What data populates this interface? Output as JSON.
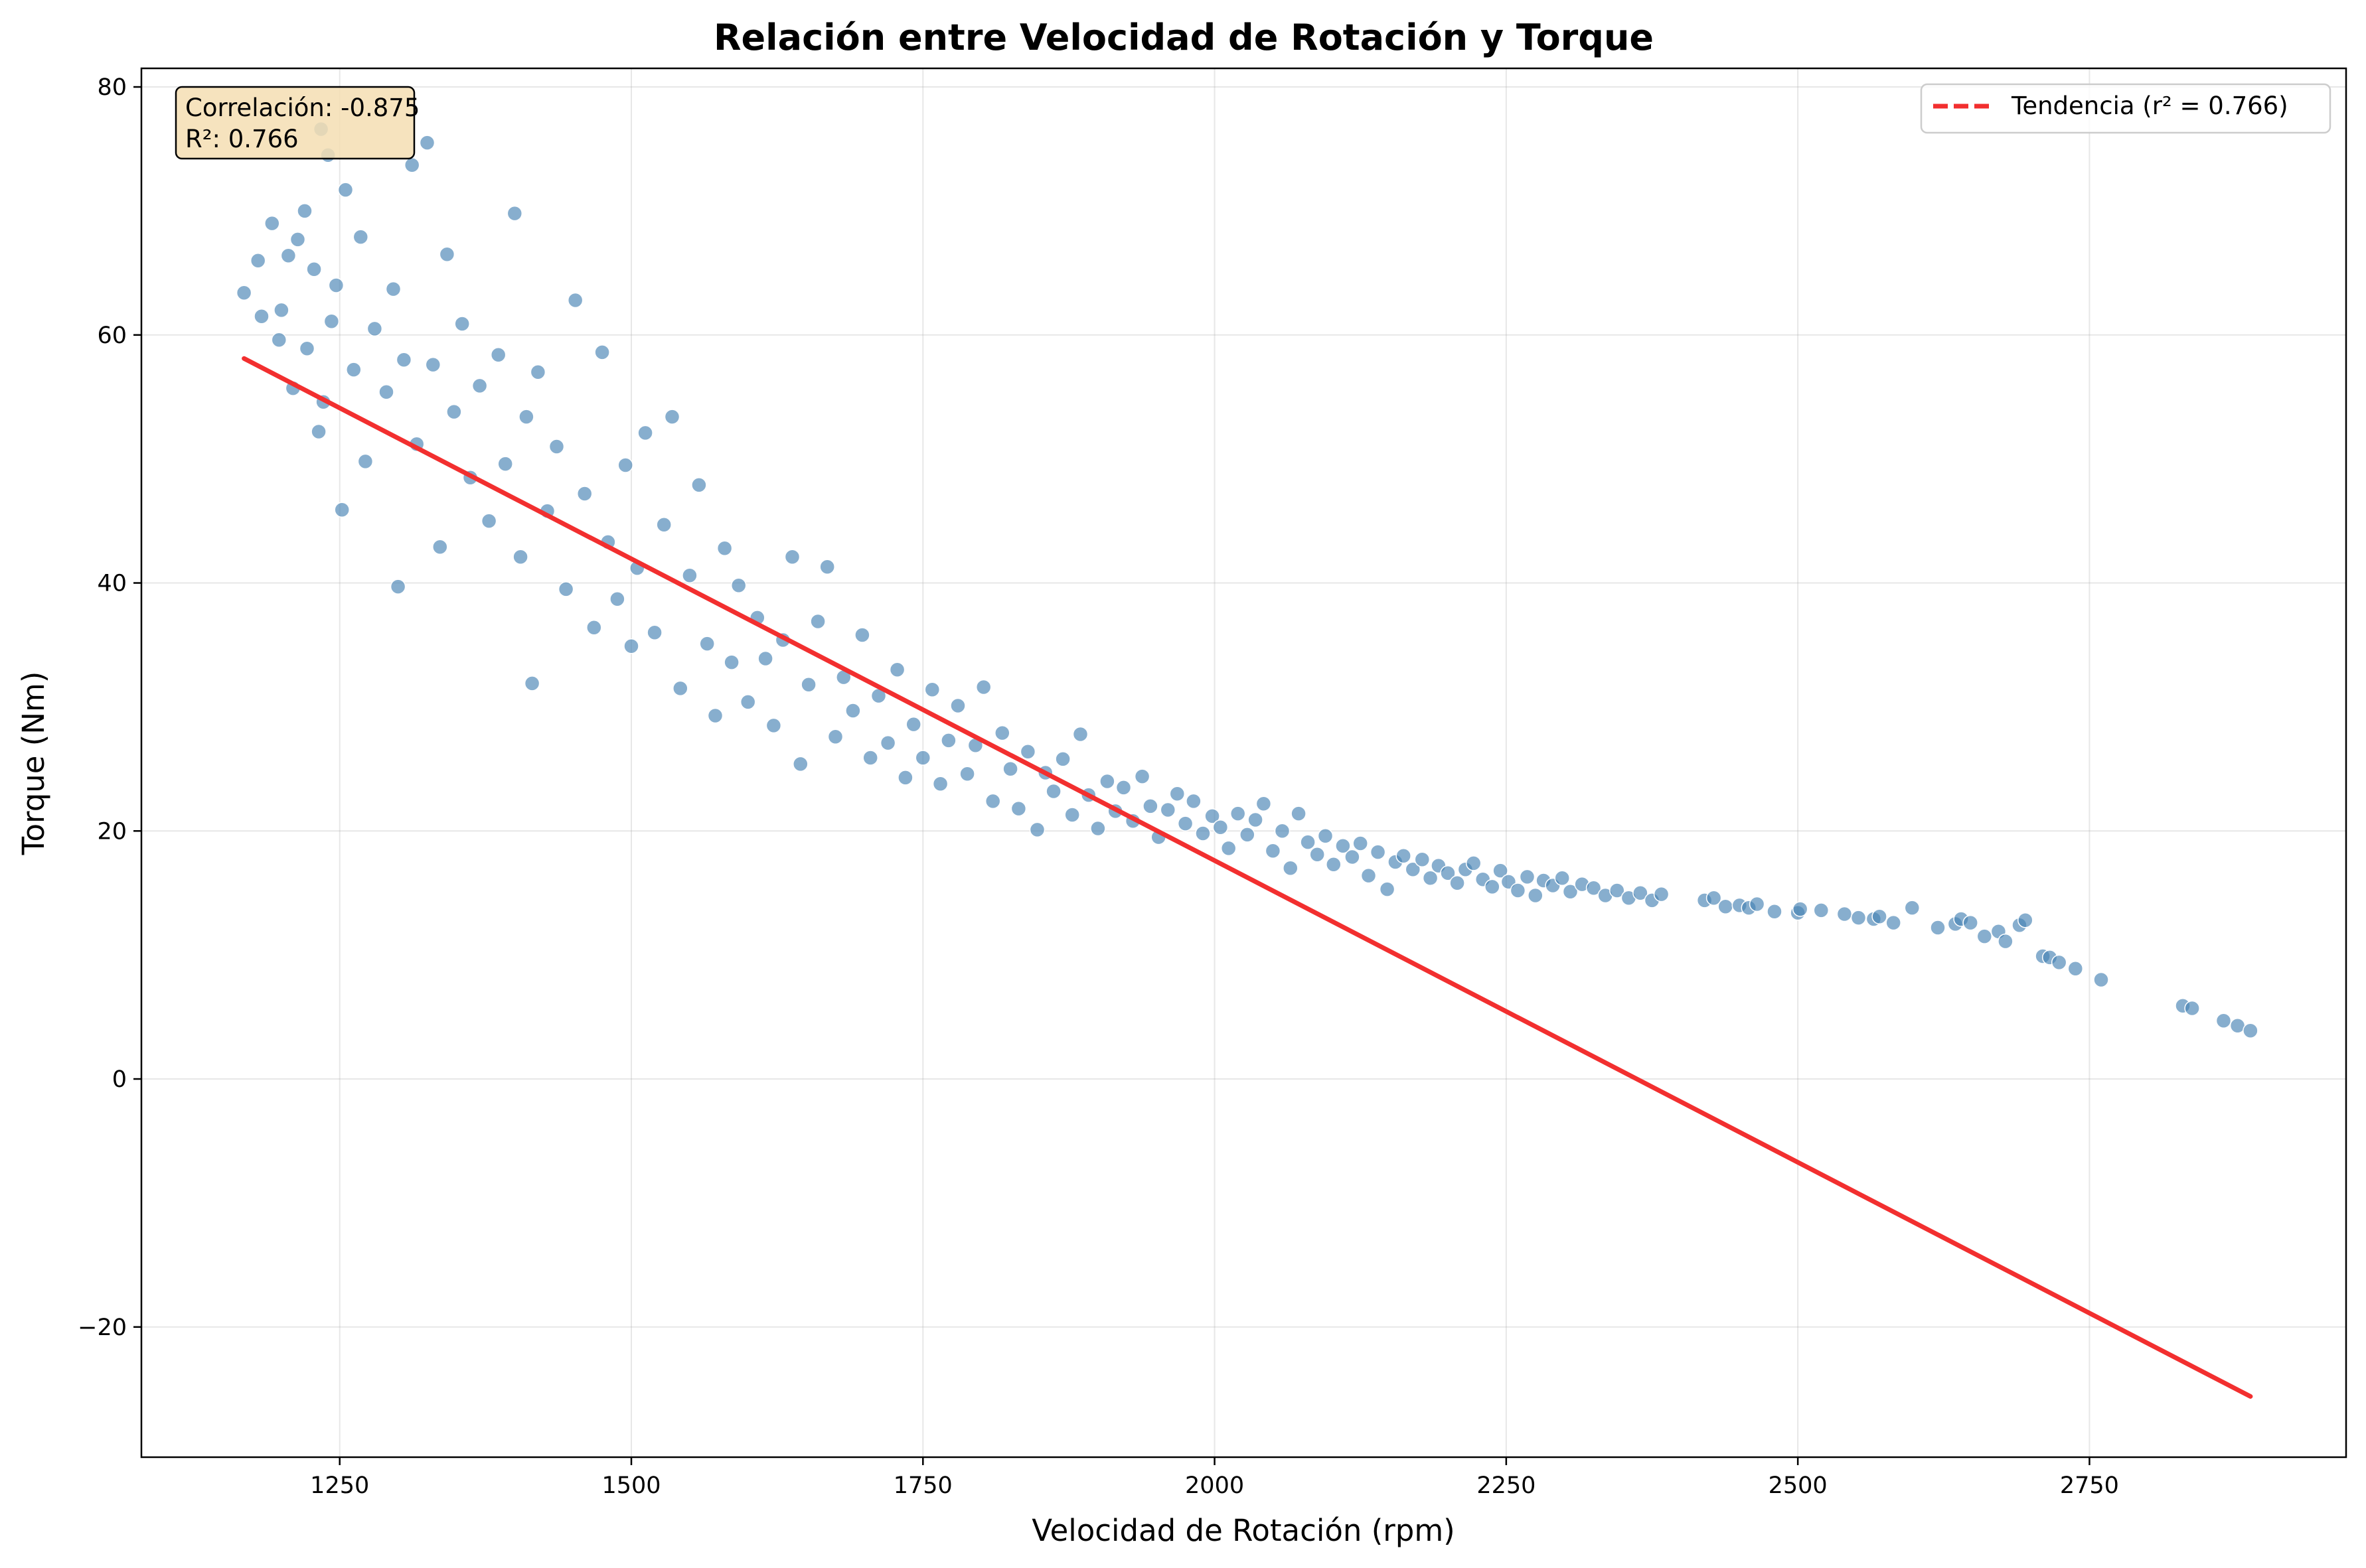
{
  "chart_data": {
    "type": "scatter",
    "title": "Relación entre Velocidad de Rotación y Torque",
    "xlabel": "Velocidad de Rotación (rpm)",
    "ylabel": "Torque (Nm)",
    "xlim": [
      1080,
      2970
    ],
    "ylim": [
      -30.5,
      81.5
    ],
    "x_ticks": [
      1250,
      1500,
      1750,
      2000,
      2250,
      2500,
      2750
    ],
    "y_ticks": [
      -20,
      0,
      20,
      40,
      60,
      80
    ],
    "x_tick_labels": [
      "1250",
      "1500",
      "1750",
      "2000",
      "2250",
      "2500",
      "2750"
    ],
    "y_tick_labels": [
      "−20",
      "0",
      "20",
      "40",
      "60",
      "80"
    ],
    "grid": true,
    "legend_position": "top-right",
    "series": [
      {
        "kind": "scatter",
        "color": "#4682b4",
        "points": [
          [
            1168,
            63.4
          ],
          [
            1180,
            66.0
          ],
          [
            1183,
            61.5
          ],
          [
            1192,
            69.0
          ],
          [
            1198,
            59.6
          ],
          [
            1200,
            62.0
          ],
          [
            1206,
            66.4
          ],
          [
            1210,
            55.7
          ],
          [
            1214,
            67.7
          ],
          [
            1220,
            70.0
          ],
          [
            1222,
            58.9
          ],
          [
            1228,
            65.3
          ],
          [
            1232,
            52.2
          ],
          [
            1234,
            76.6
          ],
          [
            1236,
            54.6
          ],
          [
            1240,
            74.5
          ],
          [
            1243,
            61.1
          ],
          [
            1247,
            64.0
          ],
          [
            1252,
            45.9
          ],
          [
            1255,
            71.7
          ],
          [
            1262,
            57.2
          ],
          [
            1268,
            67.9
          ],
          [
            1272,
            49.8
          ],
          [
            1280,
            60.5
          ],
          [
            1290,
            55.4
          ],
          [
            1296,
            63.7
          ],
          [
            1300,
            39.7
          ],
          [
            1305,
            58.0
          ],
          [
            1312,
            73.7
          ],
          [
            1316,
            51.2
          ],
          [
            1325,
            75.5
          ],
          [
            1330,
            57.6
          ],
          [
            1336,
            42.9
          ],
          [
            1342,
            66.5
          ],
          [
            1348,
            53.8
          ],
          [
            1355,
            60.9
          ],
          [
            1362,
            48.5
          ],
          [
            1370,
            55.9
          ],
          [
            1378,
            45.0
          ],
          [
            1386,
            58.4
          ],
          [
            1392,
            49.6
          ],
          [
            1400,
            69.8
          ],
          [
            1405,
            42.1
          ],
          [
            1410,
            53.4
          ],
          [
            1415,
            31.9
          ],
          [
            1420,
            57.0
          ],
          [
            1428,
            45.8
          ],
          [
            1436,
            51.0
          ],
          [
            1444,
            39.5
          ],
          [
            1452,
            62.8
          ],
          [
            1460,
            47.2
          ],
          [
            1468,
            36.4
          ],
          [
            1475,
            58.6
          ],
          [
            1480,
            43.3
          ],
          [
            1488,
            38.7
          ],
          [
            1495,
            49.5
          ],
          [
            1500,
            34.9
          ],
          [
            1505,
            41.2
          ],
          [
            1512,
            52.1
          ],
          [
            1520,
            36.0
          ],
          [
            1528,
            44.7
          ],
          [
            1535,
            53.4
          ],
          [
            1542,
            31.5
          ],
          [
            1550,
            40.6
          ],
          [
            1558,
            47.9
          ],
          [
            1565,
            35.1
          ],
          [
            1572,
            29.3
          ],
          [
            1580,
            42.8
          ],
          [
            1586,
            33.6
          ],
          [
            1592,
            39.8
          ],
          [
            1600,
            30.4
          ],
          [
            1608,
            37.2
          ],
          [
            1615,
            33.9
          ],
          [
            1622,
            28.5
          ],
          [
            1630,
            35.4
          ],
          [
            1638,
            42.1
          ],
          [
            1645,
            25.4
          ],
          [
            1652,
            31.8
          ],
          [
            1660,
            36.9
          ],
          [
            1668,
            41.3
          ],
          [
            1675,
            27.6
          ],
          [
            1682,
            32.4
          ],
          [
            1690,
            29.7
          ],
          [
            1698,
            35.8
          ],
          [
            1705,
            25.9
          ],
          [
            1712,
            30.9
          ],
          [
            1720,
            27.1
          ],
          [
            1728,
            33.0
          ],
          [
            1735,
            24.3
          ],
          [
            1742,
            28.6
          ],
          [
            1750,
            25.9
          ],
          [
            1758,
            31.4
          ],
          [
            1765,
            23.8
          ],
          [
            1772,
            27.3
          ],
          [
            1780,
            30.1
          ],
          [
            1788,
            24.6
          ],
          [
            1795,
            26.9
          ],
          [
            1802,
            31.6
          ],
          [
            1810,
            22.4
          ],
          [
            1818,
            27.9
          ],
          [
            1825,
            25.0
          ],
          [
            1832,
            21.8
          ],
          [
            1840,
            26.4
          ],
          [
            1848,
            20.1
          ],
          [
            1855,
            24.7
          ],
          [
            1862,
            23.2
          ],
          [
            1870,
            25.8
          ],
          [
            1878,
            21.3
          ],
          [
            1885,
            27.8
          ],
          [
            1892,
            22.9
          ],
          [
            1900,
            20.2
          ],
          [
            1908,
            24.0
          ],
          [
            1915,
            21.6
          ],
          [
            1922,
            23.5
          ],
          [
            1930,
            20.8
          ],
          [
            1938,
            24.4
          ],
          [
            1945,
            22.0
          ],
          [
            1952,
            19.5
          ],
          [
            1960,
            21.7
          ],
          [
            1968,
            23.0
          ],
          [
            1975,
            20.6
          ],
          [
            1982,
            22.4
          ],
          [
            1990,
            19.8
          ],
          [
            1998,
            21.2
          ],
          [
            2005,
            20.3
          ],
          [
            2012,
            18.6
          ],
          [
            2020,
            21.4
          ],
          [
            2028,
            19.7
          ],
          [
            2035,
            20.9
          ],
          [
            2042,
            22.2
          ],
          [
            2050,
            18.4
          ],
          [
            2058,
            20.0
          ],
          [
            2065,
            17.0
          ],
          [
            2072,
            21.4
          ],
          [
            2080,
            19.1
          ],
          [
            2088,
            18.1
          ],
          [
            2095,
            19.6
          ],
          [
            2102,
            17.3
          ],
          [
            2110,
            18.8
          ],
          [
            2118,
            17.9
          ],
          [
            2125,
            19.0
          ],
          [
            2132,
            16.4
          ],
          [
            2140,
            18.3
          ],
          [
            2148,
            15.3
          ],
          [
            2155,
            17.5
          ],
          [
            2162,
            18.0
          ],
          [
            2170,
            16.9
          ],
          [
            2178,
            17.7
          ],
          [
            2185,
            16.2
          ],
          [
            2192,
            17.2
          ],
          [
            2200,
            16.6
          ],
          [
            2208,
            15.8
          ],
          [
            2215,
            16.9
          ],
          [
            2222,
            17.4
          ],
          [
            2230,
            16.1
          ],
          [
            2238,
            15.5
          ],
          [
            2245,
            16.8
          ],
          [
            2252,
            15.9
          ],
          [
            2260,
            15.2
          ],
          [
            2268,
            16.3
          ],
          [
            2275,
            14.8
          ],
          [
            2282,
            16.0
          ],
          [
            2290,
            15.6
          ],
          [
            2298,
            16.2
          ],
          [
            2305,
            15.1
          ],
          [
            2315,
            15.7
          ],
          [
            2325,
            15.4
          ],
          [
            2335,
            14.8
          ],
          [
            2345,
            15.2
          ],
          [
            2355,
            14.6
          ],
          [
            2365,
            15.0
          ],
          [
            2375,
            14.4
          ],
          [
            2383,
            14.9
          ],
          [
            2420,
            14.4
          ],
          [
            2428,
            14.6
          ],
          [
            2438,
            13.9
          ],
          [
            2450,
            14.0
          ],
          [
            2458,
            13.8
          ],
          [
            2465,
            14.1
          ],
          [
            2480,
            13.5
          ],
          [
            2500,
            13.4
          ],
          [
            2502,
            13.7
          ],
          [
            2520,
            13.6
          ],
          [
            2540,
            13.3
          ],
          [
            2552,
            13.0
          ],
          [
            2565,
            12.9
          ],
          [
            2570,
            13.1
          ],
          [
            2582,
            12.6
          ],
          [
            2598,
            13.8
          ],
          [
            2620,
            12.2
          ],
          [
            2635,
            12.5
          ],
          [
            2640,
            12.9
          ],
          [
            2648,
            12.6
          ],
          [
            2660,
            11.5
          ],
          [
            2672,
            11.9
          ],
          [
            2678,
            11.1
          ],
          [
            2690,
            12.4
          ],
          [
            2695,
            12.8
          ],
          [
            2710,
            9.9
          ],
          [
            2716,
            9.8
          ],
          [
            2724,
            9.4
          ],
          [
            2738,
            8.9
          ],
          [
            2760,
            8.0
          ],
          [
            2830,
            5.9
          ],
          [
            2838,
            5.7
          ],
          [
            2865,
            4.7
          ],
          [
            2877,
            4.3
          ],
          [
            2888,
            3.9
          ]
        ]
      },
      {
        "kind": "line",
        "name": "Tendencia (r² = 0.766)",
        "color": "#f22f2f",
        "x": [
          1168,
          2888
        ],
        "y": [
          58.1,
          -25.6
        ]
      }
    ],
    "annotations": {
      "stats_box_lines": [
        "Correlación: -0.875",
        "R²: 0.766"
      ],
      "stats_box_fill": "#f5deb3"
    }
  }
}
